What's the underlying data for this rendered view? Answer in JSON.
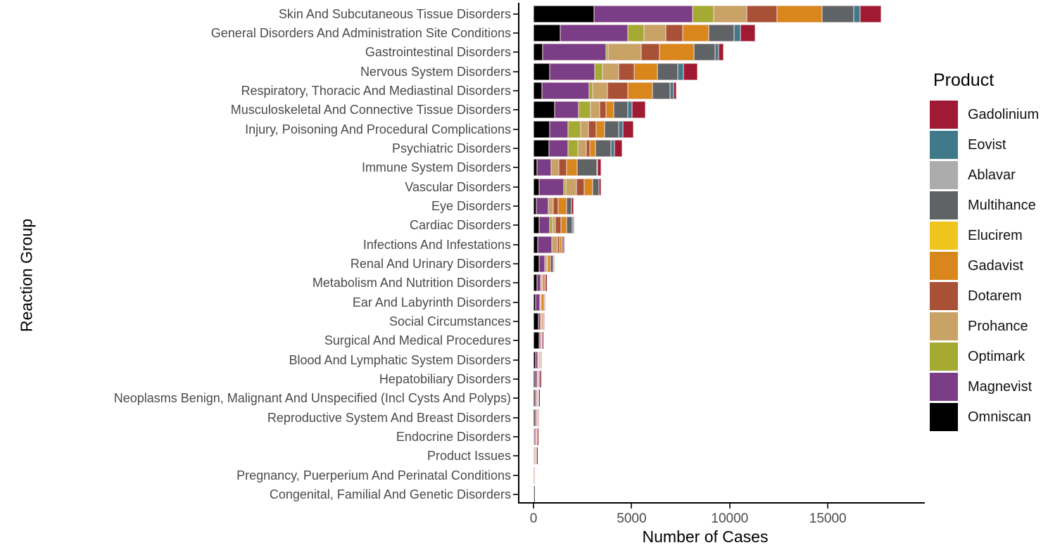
{
  "chart_data": {
    "type": "bar",
    "orientation": "horizontal-stacked",
    "title": "",
    "xlabel": "Number of Cases",
    "ylabel": "Reaction Group",
    "legend_title": "Product",
    "legend_position": "right",
    "grid": false,
    "xlim": [
      0,
      18900
    ],
    "x_ticks": [
      0,
      5000,
      10000,
      15000
    ],
    "x_tick_labels": [
      "0",
      "5000",
      "10000",
      "15000"
    ],
    "products": [
      {
        "name": "Gadolinium",
        "color": "#A11A33"
      },
      {
        "name": "Eovist",
        "color": "#41798A"
      },
      {
        "name": "Ablavar",
        "color": "#ACACAC"
      },
      {
        "name": "Multihance",
        "color": "#5F6366"
      },
      {
        "name": "Elucirem",
        "color": "#EFC51D"
      },
      {
        "name": "Gadavist",
        "color": "#D9861C"
      },
      {
        "name": "Dotarem",
        "color": "#A95136"
      },
      {
        "name": "Prohance",
        "color": "#C9A265"
      },
      {
        "name": "Optimark",
        "color": "#A5AA33"
      },
      {
        "name": "Magnevist",
        "color": "#7B3D86"
      },
      {
        "name": "Omniscan",
        "color": "#000000"
      }
    ],
    "stack_order": [
      "Omniscan",
      "Magnevist",
      "Optimark",
      "Prohance",
      "Dotarem",
      "Gadavist",
      "Elucirem",
      "Multihance",
      "Ablavar",
      "Eovist",
      "Gadolinium"
    ],
    "rows": [
      {
        "category": "Skin And Subcutaneous Tissue Disorders",
        "values": [
          3100,
          5000,
          1080,
          1680,
          1550,
          2300,
          0,
          1620,
          0,
          320,
          1080
        ]
      },
      {
        "category": "General Disorders And Administration Site Conditions",
        "values": [
          1380,
          3430,
          810,
          1140,
          840,
          1340,
          0,
          1290,
          0,
          300,
          780
        ]
      },
      {
        "category": "Gastrointestinal Disorders",
        "values": [
          480,
          3200,
          140,
          1680,
          930,
          1760,
          0,
          1080,
          0,
          180,
          240
        ]
      },
      {
        "category": "Nervous System Disorders",
        "values": [
          840,
          2270,
          420,
          800,
          810,
          1190,
          0,
          1040,
          0,
          280,
          720
        ]
      },
      {
        "category": "Respiratory, Thoracic And Mediastinal Disorders",
        "values": [
          420,
          2430,
          170,
          750,
          1050,
          1260,
          0,
          880,
          0,
          190,
          140
        ]
      },
      {
        "category": "Musculoskeletal And Connective Tissue Disorders",
        "values": [
          1080,
          1220,
          600,
          480,
          300,
          420,
          0,
          720,
          0,
          220,
          660
        ]
      },
      {
        "category": "Injury, Poisoning And Procedural Complications",
        "values": [
          840,
          930,
          650,
          390,
          380,
          420,
          0,
          720,
          0,
          220,
          540
        ]
      },
      {
        "category": "Psychiatric Disorders",
        "values": [
          780,
          990,
          480,
          440,
          180,
          270,
          0,
          790,
          0,
          200,
          400
        ]
      },
      {
        "category": "Immune System Disorders",
        "values": [
          180,
          720,
          0,
          390,
          380,
          570,
          0,
          980,
          0,
          60,
          150
        ]
      },
      {
        "category": "Vascular Disorders",
        "values": [
          300,
          1260,
          80,
          550,
          380,
          440,
          0,
          310,
          0,
          30,
          80
        ]
      },
      {
        "category": "Eye Disorders",
        "values": [
          160,
          600,
          0,
          230,
          270,
          420,
          0,
          260,
          0,
          0,
          100
        ]
      },
      {
        "category": "Cardiac Disorders",
        "values": [
          300,
          540,
          140,
          150,
          280,
          260,
          0,
          300,
          0,
          60,
          50
        ]
      },
      {
        "category": "Infections And Infestations",
        "values": [
          220,
          720,
          0,
          290,
          100,
          100,
          0,
          80,
          0,
          0,
          60
        ]
      },
      {
        "category": "Renal And Urinary Disorders",
        "values": [
          300,
          270,
          0,
          100,
          40,
          150,
          0,
          130,
          0,
          50,
          40
        ]
      },
      {
        "category": "Metabolism And Nutrition Disorders",
        "values": [
          180,
          180,
          0,
          80,
          40,
          80,
          0,
          70,
          0,
          0,
          30
        ]
      },
      {
        "category": "Ear And Labyrinth Disorders",
        "values": [
          120,
          190,
          0,
          40,
          30,
          160,
          0,
          50,
          0,
          0,
          30
        ]
      },
      {
        "category": "Social Circumstances",
        "values": [
          260,
          110,
          0,
          40,
          30,
          60,
          0,
          50,
          0,
          0,
          20
        ]
      },
      {
        "category": "Surgical And Medical Procedures",
        "values": [
          300,
          60,
          0,
          20,
          20,
          30,
          0,
          20,
          0,
          0,
          10
        ]
      },
      {
        "category": "Blood And Lymphatic System Disorders",
        "values": [
          90,
          120,
          40,
          40,
          30,
          50,
          0,
          40,
          0,
          0,
          10
        ]
      },
      {
        "category": "Hepatobiliary Disorders",
        "values": [
          60,
          110,
          0,
          40,
          30,
          60,
          0,
          50,
          0,
          0,
          10
        ]
      },
      {
        "category": "Neoplasms Benign, Malignant And Unspecified (Incl Cysts And Polyps)",
        "values": [
          60,
          90,
          0,
          30,
          20,
          50,
          0,
          30,
          0,
          0,
          20
        ]
      },
      {
        "category": "Reproductive System And Breast Disorders",
        "values": [
          60,
          90,
          0,
          30,
          20,
          40,
          0,
          30,
          0,
          0,
          10
        ]
      },
      {
        "category": "Endocrine Disorders",
        "values": [
          50,
          70,
          0,
          20,
          10,
          40,
          0,
          20,
          0,
          0,
          10
        ]
      },
      {
        "category": "Product Issues",
        "values": [
          20,
          30,
          0,
          30,
          20,
          60,
          0,
          20,
          0,
          0,
          10
        ]
      },
      {
        "category": "Pregnancy, Puerperium And Perinatal Conditions",
        "values": [
          10,
          20,
          0,
          10,
          10,
          10,
          0,
          0,
          0,
          0,
          0
        ]
      },
      {
        "category": "Congenital, Familial And Genetic Disorders",
        "values": [
          10,
          20,
          0,
          10,
          0,
          10,
          0,
          5,
          0,
          0,
          0
        ]
      }
    ]
  }
}
